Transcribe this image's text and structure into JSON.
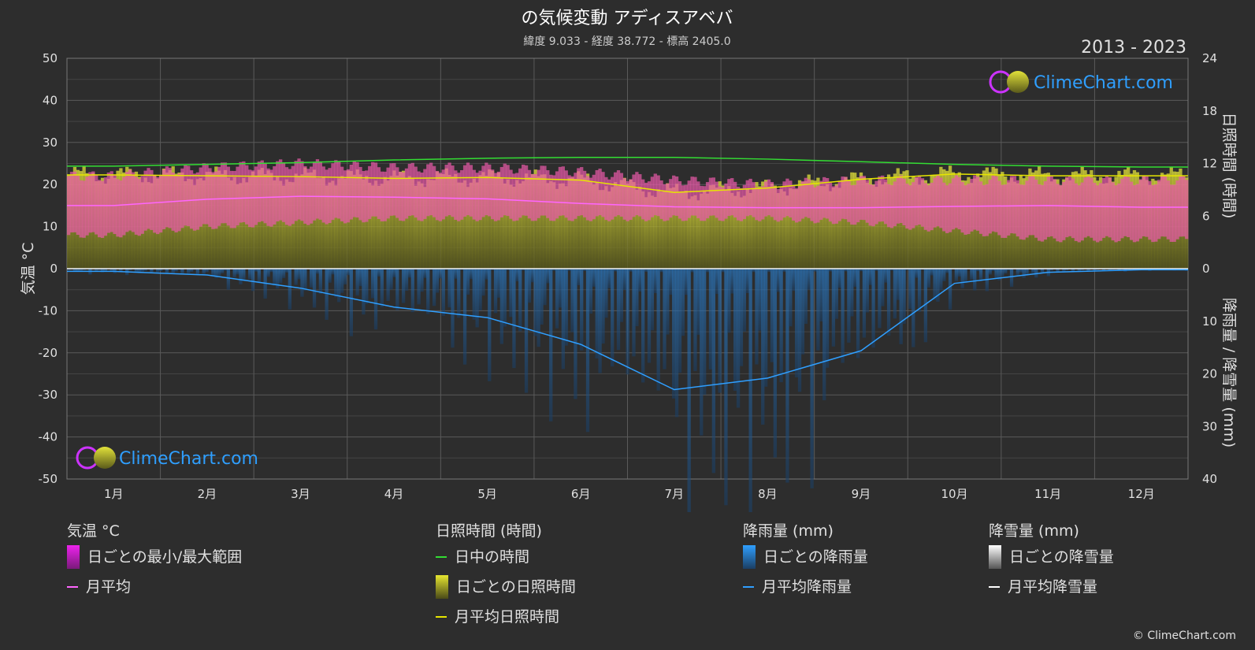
{
  "chart_data": {
    "type": "area",
    "title": "の気候変動 アディスアベバ",
    "subtitle": "緯度 9.033 - 経度 38.772 - 標高 2405.0",
    "period": "2013 - 2023",
    "watermark": "ClimeChart.com",
    "copyright": "© ClimeChart.com",
    "categories": [
      "1月",
      "2月",
      "3月",
      "4月",
      "5月",
      "6月",
      "7月",
      "8月",
      "9月",
      "10月",
      "11月",
      "12月"
    ],
    "axes": {
      "left": {
        "label": "気温 °C",
        "min": -50,
        "max": 50,
        "ticks": [
          "50",
          "40",
          "30",
          "20",
          "10",
          "0",
          "-10",
          "-20",
          "-30",
          "-40",
          "-50"
        ]
      },
      "right_top": {
        "label": "日照時間 (時間)",
        "min": 0,
        "max": 24,
        "ticks": [
          "24",
          "18",
          "12",
          "6",
          "0"
        ]
      },
      "right_bottom": {
        "label": "降雨量 / 降雪量 (mm)",
        "min": 0,
        "max": 40,
        "ticks": [
          "10",
          "20",
          "30",
          "40"
        ]
      }
    },
    "series": [
      {
        "name": "日中の時間",
        "unit": "hours",
        "color": "#33dd33",
        "values": [
          11.7,
          11.9,
          12.1,
          12.4,
          12.6,
          12.7,
          12.7,
          12.5,
          12.2,
          11.9,
          11.7,
          11.6
        ]
      },
      {
        "name": "月平均日照時間",
        "unit": "hours",
        "color": "#e6e600",
        "values": [
          10.7,
          10.6,
          10.5,
          10.3,
          10.4,
          10.1,
          8.7,
          9.2,
          10.2,
          10.8,
          10.6,
          10.6
        ]
      },
      {
        "name": "月平均",
        "unit": "°C",
        "color": "#ff66ff",
        "values": [
          15.0,
          16.5,
          17.2,
          17.0,
          16.6,
          15.5,
          14.7,
          14.5,
          14.5,
          14.8,
          15.0,
          14.6
        ]
      },
      {
        "name": "月平均降雨量",
        "unit": "mm",
        "color": "#2f9fff",
        "values": [
          0.5,
          1.2,
          3.7,
          7.3,
          9.3,
          14.4,
          23.0,
          20.8,
          15.6,
          2.8,
          0.7,
          0.2
        ]
      },
      {
        "name": "月平均降雪量",
        "unit": "mm",
        "color": "#ffffff",
        "values": [
          0,
          0,
          0,
          0,
          0,
          0,
          0,
          0,
          0,
          0,
          0,
          0
        ]
      }
    ],
    "temperature_range": {
      "name": "日ごとの最小/最大範囲",
      "min": [
        8,
        10,
        11,
        12,
        12,
        12,
        12,
        12,
        11,
        9,
        7,
        7
      ],
      "max": [
        22,
        24,
        25,
        24,
        24,
        23,
        21,
        20,
        21,
        21,
        21,
        21
      ]
    },
    "grid": true
  },
  "legend": {
    "groups": [
      {
        "title": "気温 °C",
        "items": [
          {
            "label": "日ごとの最小/最大範囲",
            "swatch": "box",
            "color": "#ee22ee"
          },
          {
            "label": "月平均",
            "swatch": "line",
            "color": "#ff66ff"
          }
        ]
      },
      {
        "title": "日照時間 (時間)",
        "items": [
          {
            "label": "日中の時間",
            "swatch": "line",
            "color": "#33dd33"
          },
          {
            "label": "ごとの日照時間",
            "prefix": "日",
            "swatch": "box",
            "color": "#c8c820"
          },
          {
            "label": "月平均日照時間",
            "swatch": "line",
            "color": "#e6e600"
          }
        ]
      },
      {
        "title": "降雨量 (mm)",
        "items": [
          {
            "label": "日ごとの降雨量",
            "swatch": "box",
            "color": "#1f86d6"
          },
          {
            "label": "月平均降雨量",
            "swatch": "line",
            "color": "#2f9fff"
          }
        ]
      },
      {
        "title": "降雪量 (mm)",
        "items": [
          {
            "label": "日ごとの降雪量",
            "swatch": "box",
            "color": "#dddddd"
          },
          {
            "label": "月平均降雪量",
            "swatch": "line",
            "color": "#ffffff"
          }
        ]
      }
    ]
  }
}
